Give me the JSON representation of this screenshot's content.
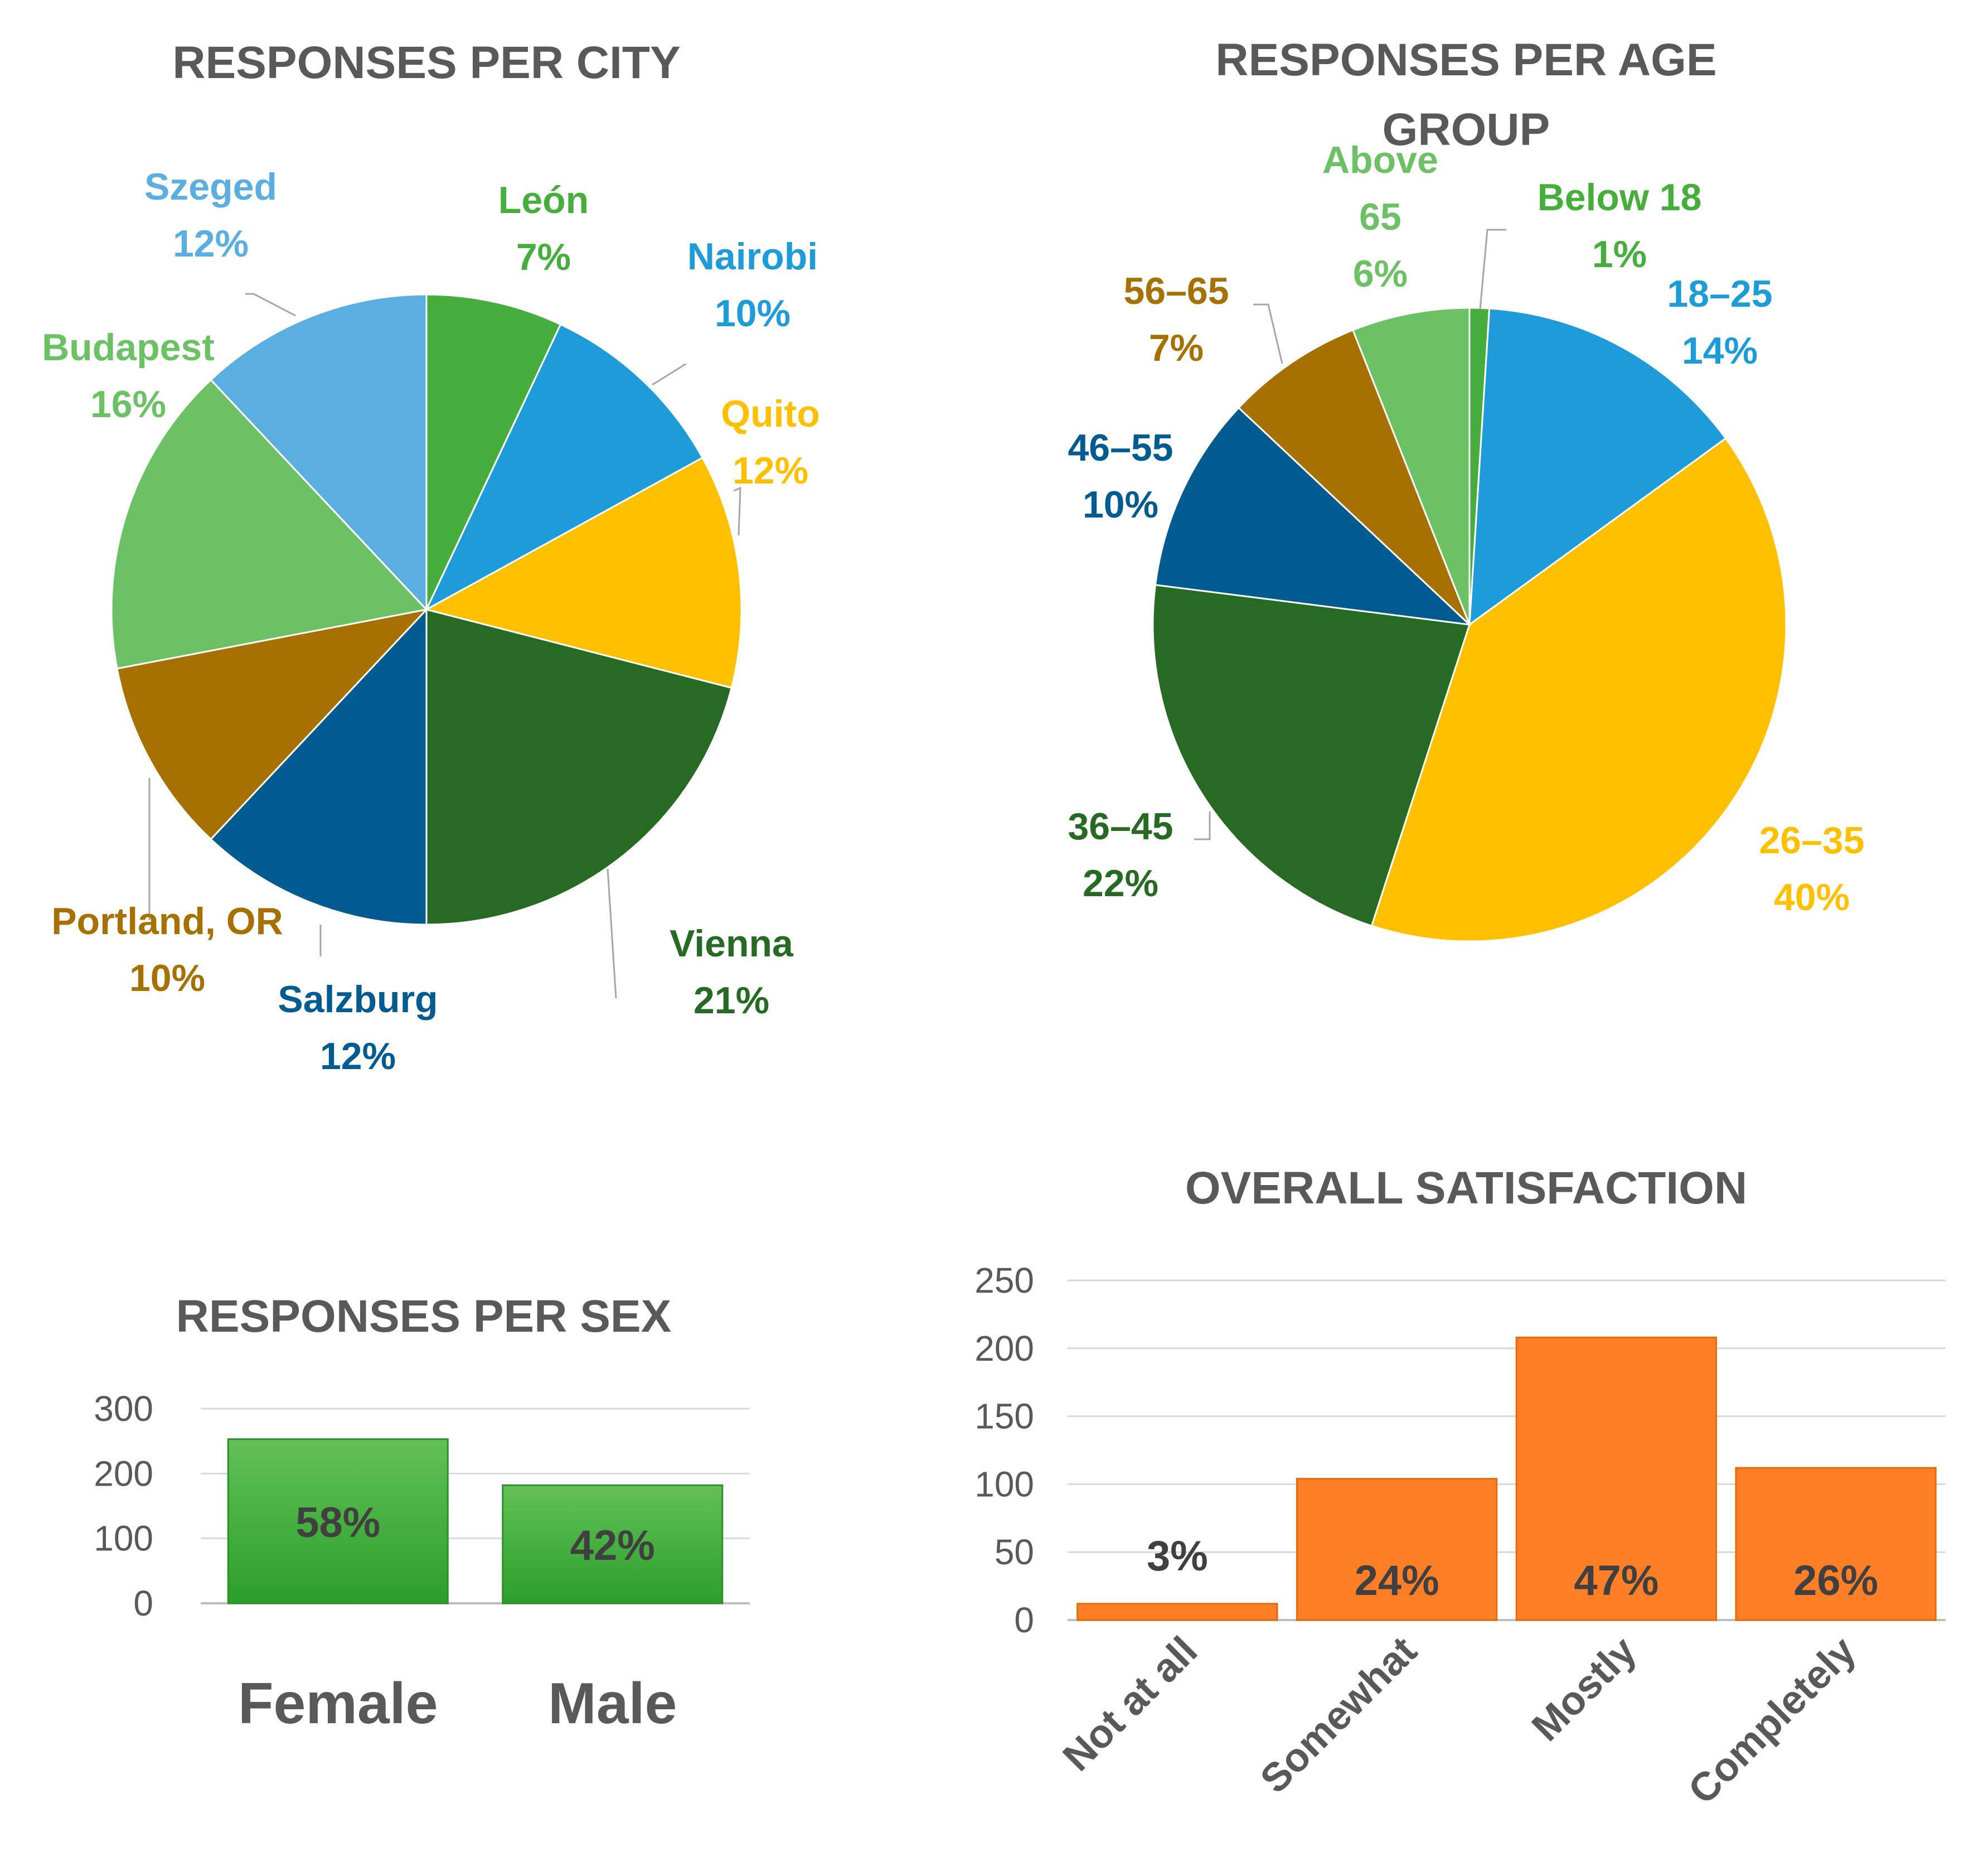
{
  "chart_data": [
    {
      "type": "pie",
      "title": "RESPONSES PER CITY",
      "slices": [
        {
          "label": "León",
          "value": 7,
          "pct": "7%",
          "color": "#47AE3D"
        },
        {
          "label": "Nairobi",
          "value": 10,
          "pct": "10%",
          "color": "#1E9BD9"
        },
        {
          "label": "Quito",
          "value": 12,
          "pct": "12%",
          "color": "#FFC000"
        },
        {
          "label": "Vienna",
          "value": 21,
          "pct": "21%",
          "color": "#276A24"
        },
        {
          "label": "Salzburg",
          "value": 12,
          "pct": "12%",
          "color": "#005B91"
        },
        {
          "label": "Portland, OR",
          "value": 10,
          "pct": "10%",
          "color": "#A67100"
        },
        {
          "label": "Budapest",
          "value": 16,
          "pct": "16%",
          "color": "#6CC164"
        },
        {
          "label": "Szeged",
          "value": 12,
          "pct": "12%",
          "color": "#5BAFE0"
        }
      ]
    },
    {
      "type": "pie",
      "title_lines": [
        "RESPONSES PER AGE",
        "GROUP"
      ],
      "slices": [
        {
          "label_lines": [
            "Below 18"
          ],
          "value": 1,
          "pct": "1%",
          "color": "#47AE3D"
        },
        {
          "label_lines": [
            "18–25"
          ],
          "value": 14,
          "pct": "14%",
          "color": "#1E9BD9"
        },
        {
          "label_lines": [
            "26–35"
          ],
          "value": 40,
          "pct": "40%",
          "color": "#FFC000"
        },
        {
          "label_lines": [
            "36–45"
          ],
          "value": 22,
          "pct": "22%",
          "color": "#276A24"
        },
        {
          "label_lines": [
            "46–55"
          ],
          "value": 10,
          "pct": "10%",
          "color": "#005B91"
        },
        {
          "label_lines": [
            "56–65"
          ],
          "value": 7,
          "pct": "7%",
          "color": "#A67100"
        },
        {
          "label_lines": [
            "Above",
            "65"
          ],
          "value": 6,
          "pct": "6%",
          "color": "#6CC164"
        }
      ]
    },
    {
      "type": "bar",
      "title": "RESPONSES PER SEX",
      "categories": [
        "Female",
        "Male"
      ],
      "values": [
        253,
        182
      ],
      "data_labels": [
        "58%",
        "42%"
      ],
      "y_ticks": [
        0,
        100,
        200,
        300
      ],
      "ylim": [
        0,
        300
      ],
      "grid": true,
      "bar_color_top": "#62C156",
      "bar_color_bottom": "#2C9E2C"
    },
    {
      "type": "bar",
      "title": "OVERALL SATISFACTION",
      "categories": [
        "Not at all",
        "Somewhat",
        "Mostly",
        "Completely"
      ],
      "values": [
        12,
        104,
        208,
        112
      ],
      "data_labels": [
        "3%",
        "24%",
        "47%",
        "26%"
      ],
      "y_ticks": [
        0,
        50,
        100,
        150,
        200,
        250
      ],
      "ylim": [
        0,
        250
      ],
      "grid": true,
      "bar_color": "#FF7F27"
    }
  ]
}
